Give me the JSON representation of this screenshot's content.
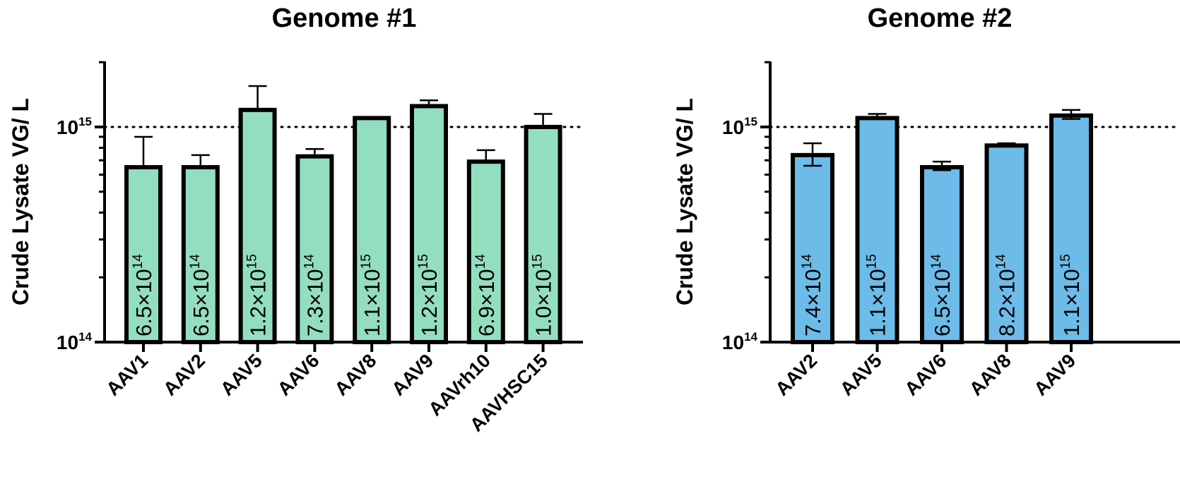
{
  "chart_data": [
    {
      "type": "bar",
      "title": "Genome #1",
      "ylabel": "Crude Lysate VG/ L",
      "yscale": "log",
      "ylim": [
        100000000000000.0,
        2000000000000000.0
      ],
      "yticks": [
        {
          "base": "10",
          "exp": "14"
        },
        {
          "base": "10",
          "exp": "15"
        }
      ],
      "reference_line": 1000000000000000.0,
      "bar_color": "#94dec0",
      "categories": [
        "AAV1",
        "AAV2",
        "AAV5",
        "AAV6",
        "AAV8",
        "AAV9",
        "AAVrh10",
        "AAVHSC15"
      ],
      "values": [
        650000000000000.0,
        650000000000000.0,
        1200000000000000.0,
        730000000000000.0,
        1100000000000000.0,
        1250000000000000.0,
        690000000000000.0,
        1000000000000000.0
      ],
      "error_upper": [
        900000000000000.0,
        740000000000000.0,
        1550000000000000.0,
        790000000000000.0,
        1100000000000000.0,
        1330000000000000.0,
        780000000000000.0,
        1150000000000000.0
      ],
      "labels": [
        {
          "mant": "6.5×10",
          "exp": "14"
        },
        {
          "mant": "6.5×10",
          "exp": "14"
        },
        {
          "mant": "1.2×10",
          "exp": "15"
        },
        {
          "mant": "7.3×10",
          "exp": "14"
        },
        {
          "mant": "1.1×10",
          "exp": "15"
        },
        {
          "mant": "1.2×10",
          "exp": "15"
        },
        {
          "mant": "6.9×10",
          "exp": "14"
        },
        {
          "mant": "1.0×10",
          "exp": "15"
        }
      ]
    },
    {
      "type": "bar",
      "title": "Genome #2",
      "ylabel": "Crude Lysate VG/ L",
      "yscale": "log",
      "ylim": [
        100000000000000.0,
        2000000000000000.0
      ],
      "yticks": [
        {
          "base": "10",
          "exp": "14"
        },
        {
          "base": "10",
          "exp": "15"
        }
      ],
      "reference_line": 1000000000000000.0,
      "bar_color": "#6dbbe8",
      "categories": [
        "AAV2",
        "AAV5",
        "AAV6",
        "AAV8",
        "AAV9"
      ],
      "values": [
        740000000000000.0,
        1100000000000000.0,
        650000000000000.0,
        820000000000000.0,
        1130000000000000.0
      ],
      "error_upper": [
        840000000000000.0,
        1150000000000000.0,
        690000000000000.0,
        840000000000000.0,
        1200000000000000.0
      ],
      "error_lower": [
        660000000000000.0,
        1100000000000000.0,
        630000000000000.0,
        820000000000000.0,
        1090000000000000.0
      ],
      "labels": [
        {
          "mant": "7.4×10",
          "exp": "14"
        },
        {
          "mant": "1.1×10",
          "exp": "15"
        },
        {
          "mant": "6.5×10",
          "exp": "14"
        },
        {
          "mant": "8.2×10",
          "exp": "14"
        },
        {
          "mant": "1.1×10",
          "exp": "15"
        }
      ]
    }
  ]
}
